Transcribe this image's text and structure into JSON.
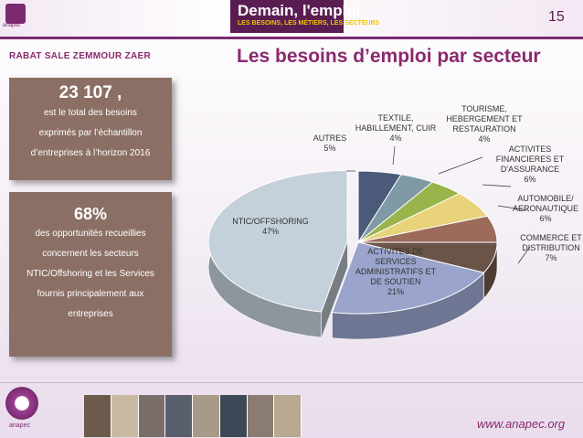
{
  "header": {
    "brand_title": "Demain, l'emploi",
    "brand_subtitle": "LES BESOINS, LES MÉTIERS, LES SECTEURS",
    "logo_text": "anapec",
    "page_number": "15"
  },
  "region": "RABAT SALE ZEMMOUR ZAER",
  "title": "Les besoins d’emploi par secteur",
  "cards": [
    {
      "big": "23 107 ,",
      "lines": [
        "est le total des besoins",
        "exprimés par l’échantillon",
        "d’entreprises à l’horizon 2016"
      ]
    },
    {
      "big": "68%",
      "lines": [
        "des opportunités recueillies",
        "concernent les secteurs",
        "NTIC/Offshoring et les Services",
        "fournis principalement aux",
        "entreprises"
      ]
    }
  ],
  "chart_data": {
    "type": "pie",
    "slices": [
      {
        "label": "AUTRES",
        "value": 5,
        "color": "#4a5a78"
      },
      {
        "label": "TEXTILE, HABILLEMENT, CUIR",
        "value": 4,
        "color": "#7f9aa5"
      },
      {
        "label": "TOURISME, HEBERGEMENT ET RESTAURATION",
        "value": 4,
        "color": "#98b44a"
      },
      {
        "label": "ACTIVITES FINANCIERES ET D'ASSURANCE",
        "value": 6,
        "color": "#e8d27a"
      },
      {
        "label": "AUTOMOBILE/ AERONAUTIQUE",
        "value": 6,
        "color": "#9c6b5a"
      },
      {
        "label": "COMMERCE ET DISTRIBUTION",
        "value": 7,
        "color": "#6a5448"
      },
      {
        "label": "ACTIVITES DE SERVICES ADMINISTRATIFS ET DE SOUTIEN",
        "value": 21,
        "color": "#9aa4cc"
      },
      {
        "label": "NTIC/OFFSHORING",
        "value": 47,
        "color": "#c4d0da"
      }
    ],
    "label_lines": [
      [
        "AUTRES",
        "5%"
      ],
      [
        "TEXTILE,",
        "HABILLEMENT, CUIR",
        "4%"
      ],
      [
        "TOURISME,",
        "HEBERGEMENT ET",
        "RESTAURATION",
        "4%"
      ],
      [
        "ACTIVITES",
        "FINANCIERES ET",
        "D'ASSURANCE",
        "6%"
      ],
      [
        "AUTOMOBILE/",
        "AERONAUTIQUE",
        "6%"
      ],
      [
        "COMMERCE ET",
        "DISTRIBUTION",
        "7%"
      ],
      [
        "ACTIVITES DE",
        "SERVICES",
        "ADMINISTRATIFS ET",
        "DE SOUTIEN",
        "21%"
      ],
      [
        "NTIC/OFFSHORING",
        "47%"
      ]
    ]
  },
  "footer": {
    "logo_text": "anapec",
    "url": "www.anapec.org",
    "photo_colors": [
      "#6c5a4a",
      "#c9b9a0",
      "#7a6e6a",
      "#5a5f6e",
      "#a89a88",
      "#3e4756",
      "#8a7c70",
      "#b8a890"
    ]
  }
}
